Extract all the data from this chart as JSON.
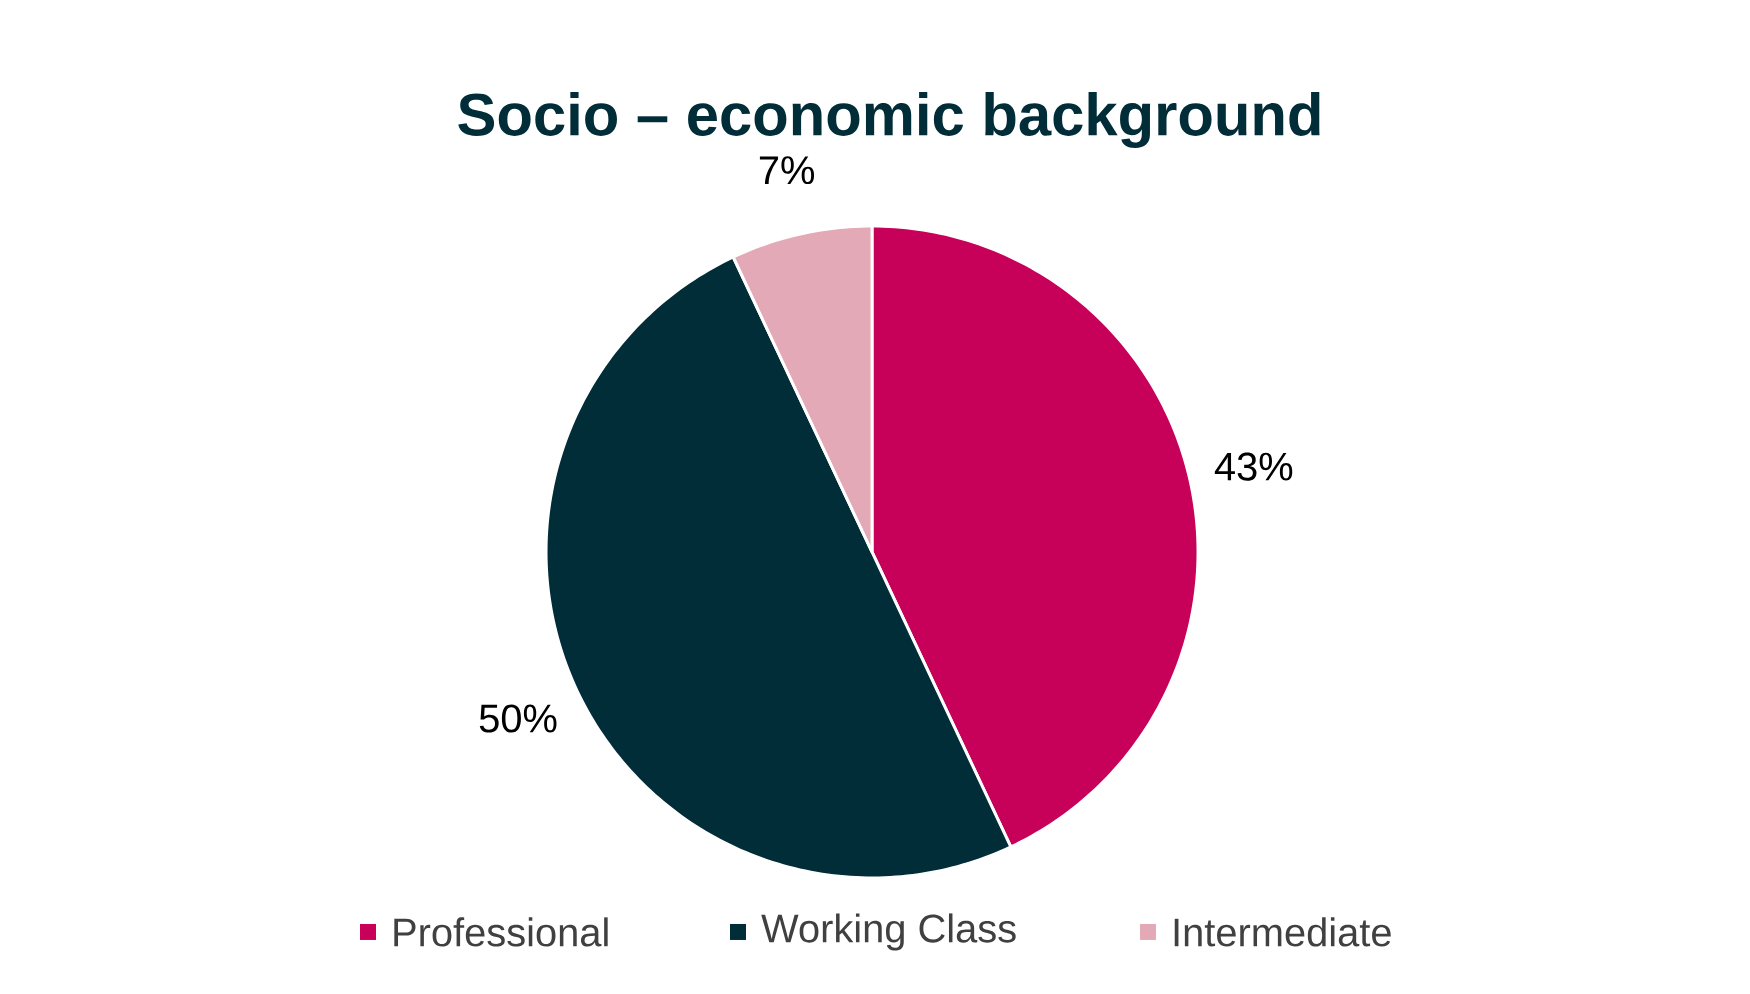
{
  "chart_data": {
    "type": "pie",
    "title": "Socio – economic background",
    "categories": [
      "Professional",
      "Working Class",
      "Intermediate"
    ],
    "values": [
      43,
      50,
      7
    ],
    "value_labels": [
      "43%",
      "50%",
      "7%"
    ],
    "colors": [
      "#c7005a",
      "#002d38",
      "#e3a9b6"
    ],
    "legend": "bottom"
  }
}
